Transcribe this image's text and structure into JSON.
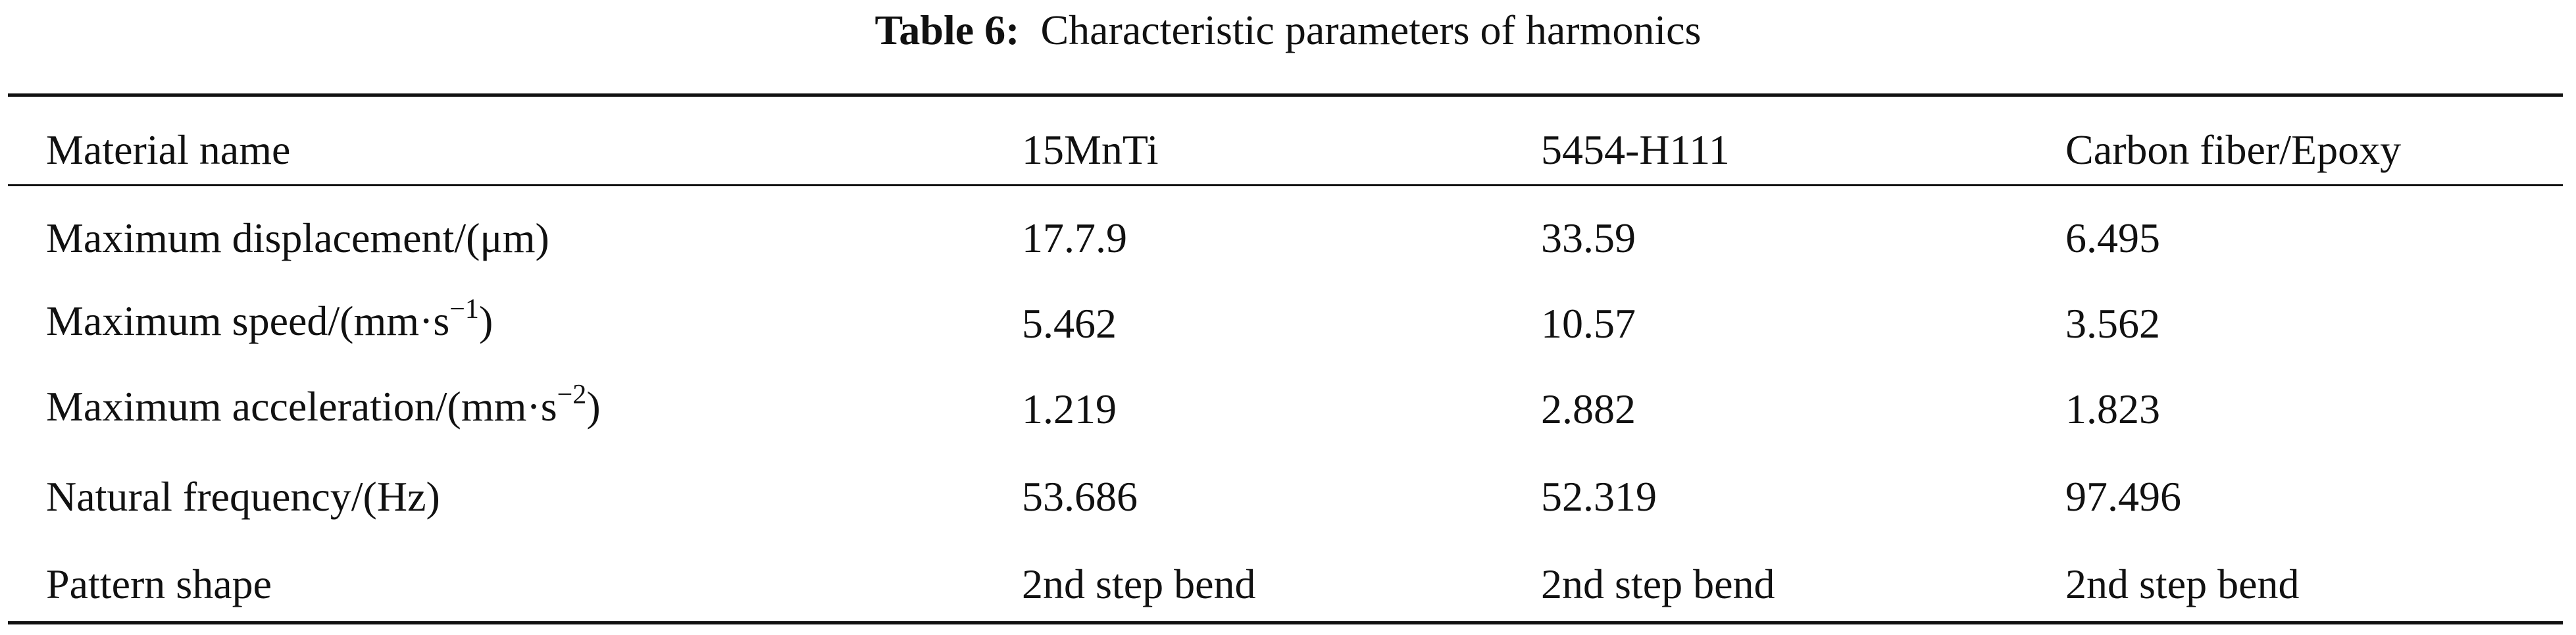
{
  "caption": {
    "label": "Table 6:",
    "text": "Characteristic parameters of harmonics"
  },
  "table": {
    "header": [
      "Material name",
      "15MnTi",
      "5454-H111",
      "Carbon fiber/Epoxy"
    ],
    "rows": [
      [
        "Maximum displacement/(μm)",
        "17.7.9",
        "33.59",
        "6.495"
      ],
      [
        {
          "text": "Maximum speed/(mm·s",
          "sup": "−1",
          "after": ")"
        },
        "5.462",
        "10.57",
        "3.562"
      ],
      [
        {
          "text": "Maximum acceleration/(mm·s",
          "sup": "−2",
          "after": ")"
        },
        "1.219",
        "2.882",
        "1.823"
      ],
      [
        "Natural frequency/(Hz)",
        "53.686",
        "52.319",
        "97.496"
      ],
      [
        "Pattern shape",
        "2nd step bend",
        "2nd step bend",
        "2nd step bend"
      ]
    ]
  }
}
